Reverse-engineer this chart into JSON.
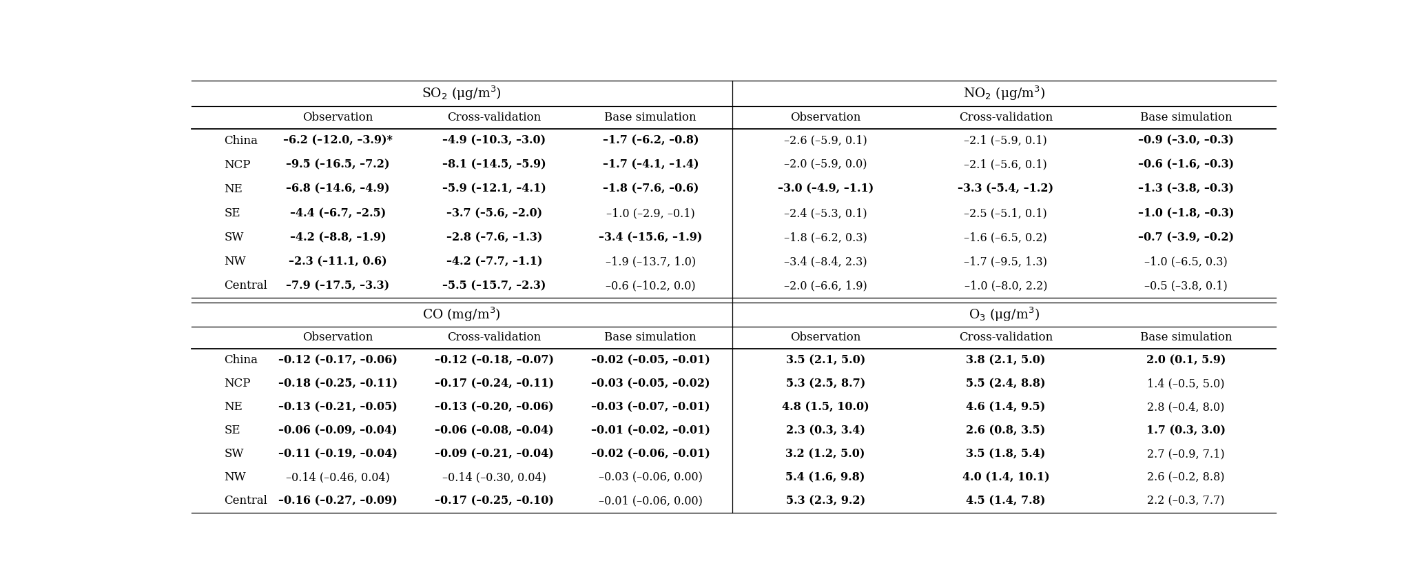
{
  "fig_width": 20.67,
  "fig_height": 8.43,
  "bg_color": "#ffffff",
  "regions": [
    "China",
    "NCP",
    "NE",
    "SE",
    "SW",
    "NW",
    "Central"
  ],
  "so2_header": "SO$_2$ (μg/m$^3$)",
  "no2_header": "NO$_2$ (μg/m$^3$)",
  "co_header": "CO (mg/m$^3$)",
  "o3_header": "O$_3$ (μg/m$^3$)",
  "sub_headers": [
    "Observation",
    "Cross-validation",
    "Base simulation"
  ],
  "so2_obs": [
    "–6.2 (–12.0, –3.9)*",
    "–9.5 (–16.5, –7.2)",
    "–6.8 (–14.6, –4.9)",
    "–4.4 (–6.7, –2.5)",
    "–4.2 (–8.8, –1.9)",
    "–2.3 (–11.1, 0.6)",
    "–7.9 (–17.5, –3.3)"
  ],
  "so2_cv": [
    "–4.9 (–10.3, –3.0)",
    "–8.1 (–14.5, –5.9)",
    "–5.9 (–12.1, –4.1)",
    "–3.7 (–5.6, –2.0)",
    "–2.8 (–7.6, –1.3)",
    "–4.2 (–7.7, –1.1)",
    "–5.5 (–15.7, –2.3)"
  ],
  "so2_base": [
    "–1.7 (–6.2, –0.8)",
    "–1.7 (–4.1, –1.4)",
    "–1.8 (–7.6, –0.6)",
    "–1.0 (–2.9, –0.1)",
    "–3.4 (–15.6, –1.9)",
    "–1.9 (–13.7, 1.0)",
    "–0.6 (–10.2, 0.0)"
  ],
  "no2_obs": [
    "–2.6 (–5.9, 0.1)",
    "–2.0 (–5.9, 0.0)",
    "–3.0 (–4.9, –1.1)",
    "–2.4 (–5.3, 0.1)",
    "–1.8 (–6.2, 0.3)",
    "–3.4 (–8.4, 2.3)",
    "–2.0 (–6.6, 1.9)"
  ],
  "no2_cv": [
    "–2.1 (–5.9, 0.1)",
    "–2.1 (–5.6, 0.1)",
    "–3.3 (–5.4, –1.2)",
    "–2.5 (–5.1, 0.1)",
    "–1.6 (–6.5, 0.2)",
    "–1.7 (–9.5, 1.3)",
    "–1.0 (–8.0, 2.2)"
  ],
  "no2_base": [
    "–0.9 (–3.0, –0.3)",
    "–0.6 (–1.6, –0.3)",
    "–1.3 (–3.8, –0.3)",
    "–1.0 (–1.8, –0.3)",
    "–0.7 (–3.9, –0.2)",
    "–1.0 (–6.5, 0.3)",
    "–0.5 (–3.8, 0.1)"
  ],
  "co_obs": [
    "–0.12 (–0.17, –0.06)",
    "–0.18 (–0.25, –0.11)",
    "–0.13 (–0.21, –0.05)",
    "–0.06 (–0.09, –0.04)",
    "–0.11 (–0.19, –0.04)",
    "–0.14 (–0.46, 0.04)",
    "–0.16 (–0.27, –0.09)"
  ],
  "co_cv": [
    "–0.12 (–0.18, –0.07)",
    "–0.17 (–0.24, –0.11)",
    "–0.13 (–0.20, –0.06)",
    "–0.06 (–0.08, –0.04)",
    "–0.09 (–0.21, –0.04)",
    "–0.14 (–0.30, 0.04)",
    "–0.17 (–0.25, –0.10)"
  ],
  "co_base": [
    "–0.02 (–0.05, –0.01)",
    "–0.03 (–0.05, –0.02)",
    "–0.03 (–0.07, –0.01)",
    "–0.01 (–0.02, –0.01)",
    "–0.02 (–0.06, –0.01)",
    "–0.03 (–0.06, 0.00)",
    "–0.01 (–0.06, 0.00)"
  ],
  "o3_obs": [
    "3.5 (2.1, 5.0)",
    "5.3 (2.5, 8.7)",
    "4.8 (1.5, 10.0)",
    "2.3 (0.3, 3.4)",
    "3.2 (1.2, 5.0)",
    "5.4 (1.6, 9.8)",
    "5.3 (2.3, 9.2)"
  ],
  "o3_cv": [
    "3.8 (2.1, 5.0)",
    "5.5 (2.4, 8.8)",
    "4.6 (1.4, 9.5)",
    "2.6 (0.8, 3.5)",
    "3.5 (1.8, 5.4)",
    "4.0 (1.4, 10.1)",
    "4.5 (1.4, 7.8)"
  ],
  "o3_base": [
    "2.0 (0.1, 5.9)",
    "1.4 (–0.5, 5.0)",
    "2.8 (–0.4, 8.0)",
    "1.7 (0.3, 3.0)",
    "2.7 (–0.9, 7.1)",
    "2.6 (–0.2, 8.8)",
    "2.2 (–0.3, 7.7)"
  ],
  "so2_obs_bold": [
    true,
    true,
    true,
    true,
    true,
    true,
    true
  ],
  "so2_cv_bold": [
    true,
    true,
    true,
    true,
    true,
    true,
    true
  ],
  "so2_base_bold": [
    true,
    true,
    true,
    false,
    true,
    false,
    false
  ],
  "no2_obs_bold": [
    false,
    false,
    true,
    false,
    false,
    false,
    false
  ],
  "no2_cv_bold": [
    false,
    false,
    true,
    false,
    false,
    false,
    false
  ],
  "no2_base_bold": [
    true,
    true,
    true,
    true,
    true,
    false,
    false
  ],
  "co_obs_bold": [
    true,
    true,
    true,
    true,
    true,
    false,
    true
  ],
  "co_cv_bold": [
    true,
    true,
    true,
    true,
    true,
    false,
    true
  ],
  "co_base_bold": [
    true,
    true,
    true,
    true,
    true,
    false,
    false
  ],
  "o3_obs_bold": [
    true,
    true,
    true,
    true,
    true,
    true,
    true
  ],
  "o3_cv_bold": [
    true,
    true,
    true,
    true,
    true,
    true,
    true
  ],
  "o3_base_bold": [
    true,
    false,
    false,
    true,
    false,
    false,
    false
  ]
}
